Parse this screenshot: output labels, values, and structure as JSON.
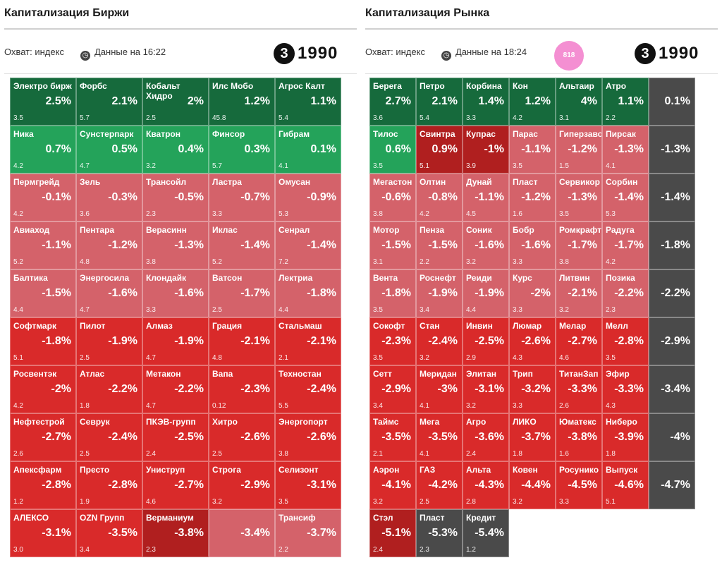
{
  "colors": {
    "dark_green": "#166a3c",
    "mid_green": "#24a35a",
    "light_red": "#d4626a",
    "red": "#d92a2a",
    "dark_red": "#b01f1f",
    "dark_gray": "#4a4a4a",
    "pink_badge": "#f48fd2"
  },
  "left_panel": {
    "title": "Капитализация Биржи",
    "subtitle_line1": "Охват: индекс",
    "subtitle_line2": "Данные на 16:22",
    "logo_text": "1990",
    "tiles": [
      {
        "name": "Электро бирж",
        "change": "2.5%",
        "price": "3.5",
        "color": "dark_green",
        "row": 0,
        "col": 0
      },
      {
        "name": "Форбс",
        "change": "2.1%",
        "price": "5.7",
        "color": "dark_green",
        "row": 0,
        "col": 1
      },
      {
        "name": "Кобальт Хидро",
        "change": "2%",
        "price": "2.5",
        "color": "dark_green",
        "row": 0,
        "col": 2
      },
      {
        "name": "Илс Мобо",
        "change": "1.2%",
        "price": "45.8",
        "color": "dark_green",
        "row": 0,
        "col": 3
      },
      {
        "name": "Агрос Калт",
        "change": "1.1%",
        "price": "5.4",
        "color": "dark_green",
        "row": 0,
        "col": 4
      },
      {
        "name": "Ника",
        "change": "0.7%",
        "price": "4.2",
        "color": "mid_green",
        "row": 1,
        "col": 0
      },
      {
        "name": "Сунстерпарк",
        "change": "0.5%",
        "price": "4.7",
        "color": "mid_green",
        "row": 1,
        "col": 1
      },
      {
        "name": "Кватрон",
        "change": "0.4%",
        "price": "3.2",
        "color": "mid_green",
        "row": 1,
        "col": 2
      },
      {
        "name": "Финсор",
        "change": "0.3%",
        "price": "5.7",
        "color": "mid_green",
        "row": 1,
        "col": 3
      },
      {
        "name": "Гибрам",
        "change": "0.1%",
        "price": "4.1",
        "color": "mid_green",
        "row": 1,
        "col": 4
      },
      {
        "name": "Пермгрейд",
        "change": "-0.1%",
        "price": "4.2",
        "color": "light_red",
        "row": 2,
        "col": 0
      },
      {
        "name": "Зель",
        "change": "-0.3%",
        "price": "3.6",
        "color": "light_red",
        "row": 2,
        "col": 1
      },
      {
        "name": "Трансойл",
        "change": "-0.5%",
        "price": "2.3",
        "color": "light_red",
        "row": 2,
        "col": 2
      },
      {
        "name": "Ластра",
        "change": "-0.7%",
        "price": "3.3",
        "color": "light_red",
        "row": 2,
        "col": 3
      },
      {
        "name": "Омусан",
        "change": "-0.9%",
        "price": "5.3",
        "color": "light_red",
        "row": 2,
        "col": 4
      },
      {
        "name": "Авиаход",
        "change": "-1.1%",
        "price": "5.2",
        "color": "light_red",
        "row": 3,
        "col": 0
      },
      {
        "name": "Пентара",
        "change": "-1.2%",
        "price": "4.8",
        "color": "light_red",
        "row": 3,
        "col": 1
      },
      {
        "name": "Верасинн",
        "change": "-1.3%",
        "price": "3.8",
        "color": "light_red",
        "row": 3,
        "col": 2
      },
      {
        "name": "Иклас",
        "change": "-1.4%",
        "price": "5.2",
        "color": "light_red",
        "row": 3,
        "col": 3
      },
      {
        "name": "Сенрал",
        "change": "-1.4%",
        "price": "7.2",
        "color": "light_red",
        "row": 3,
        "col": 4
      },
      {
        "name": "Балтика",
        "change": "-1.5%",
        "price": "4.4",
        "color": "light_red",
        "row": 4,
        "col": 0
      },
      {
        "name": "Энергосила",
        "change": "-1.6%",
        "price": "4.7",
        "color": "light_red",
        "row": 4,
        "col": 1
      },
      {
        "name": "Клондайк",
        "change": "-1.6%",
        "price": "3.3",
        "color": "light_red",
        "row": 4,
        "col": 2
      },
      {
        "name": "Ватсон",
        "change": "-1.7%",
        "price": "2.5",
        "color": "light_red",
        "row": 4,
        "col": 3
      },
      {
        "name": "Лектриа",
        "change": "-1.8%",
        "price": "4.4",
        "color": "light_red",
        "row": 4,
        "col": 4
      },
      {
        "name": "Софтмарк",
        "change": "-1.8%",
        "price": "5.1",
        "color": "red",
        "row": 5,
        "col": 0
      },
      {
        "name": "Пилот",
        "change": "-1.9%",
        "price": "2.5",
        "color": "red",
        "row": 5,
        "col": 1
      },
      {
        "name": "Алмаз",
        "change": "-1.9%",
        "price": "4.7",
        "color": "red",
        "row": 5,
        "col": 2
      },
      {
        "name": "Грация",
        "change": "-2.1%",
        "price": "4.8",
        "color": "red",
        "row": 5,
        "col": 3
      },
      {
        "name": "Стальмаш",
        "change": "-2.1%",
        "price": "2.1",
        "color": "red",
        "row": 5,
        "col": 4
      },
      {
        "name": "Росвентэк",
        "change": "-2%",
        "price": "4.2",
        "color": "red",
        "row": 6,
        "col": 0
      },
      {
        "name": "Атлас",
        "change": "-2.2%",
        "price": "1.8",
        "color": "red",
        "row": 6,
        "col": 1
      },
      {
        "name": "Метакон",
        "change": "-2.2%",
        "price": "4.7",
        "color": "red",
        "row": 6,
        "col": 2
      },
      {
        "name": "Вапа",
        "change": "-2.3%",
        "price": "0.12",
        "color": "red",
        "row": 6,
        "col": 3
      },
      {
        "name": "Техностан",
        "change": "-2.4%",
        "price": "5.5",
        "color": "red",
        "row": 6,
        "col": 4
      },
      {
        "name": "Нефтестрой",
        "change": "-2.7%",
        "price": "2.6",
        "color": "red",
        "row": 7,
        "col": 0
      },
      {
        "name": "Севрук",
        "change": "-2.4%",
        "price": "2.5",
        "color": "red",
        "row": 7,
        "col": 1
      },
      {
        "name": "ПКЭВ-групп",
        "change": "-2.5%",
        "price": "2.4",
        "color": "red",
        "row": 7,
        "col": 2
      },
      {
        "name": "Хитро",
        "change": "-2.6%",
        "price": "2.5",
        "color": "red",
        "row": 7,
        "col": 3
      },
      {
        "name": "Энергопорт",
        "change": "-2.6%",
        "price": "3.8",
        "color": "red",
        "row": 7,
        "col": 4
      },
      {
        "name": "Апексфарм",
        "change": "-2.8%",
        "price": "1.2",
        "color": "red",
        "row": 8,
        "col": 0
      },
      {
        "name": "Престо",
        "change": "-2.8%",
        "price": "1.9",
        "color": "red",
        "row": 8,
        "col": 1
      },
      {
        "name": "Униструп",
        "change": "-2.7%",
        "price": "4.6",
        "color": "red",
        "row": 8,
        "col": 2
      },
      {
        "name": "Строга",
        "change": "-2.9%",
        "price": "3.2",
        "color": "red",
        "row": 8,
        "col": 3
      },
      {
        "name": "Селизонт",
        "change": "-3.1%",
        "price": "3.5",
        "color": "red",
        "row": 8,
        "col": 4
      },
      {
        "name": "АЛЕКСО",
        "change": "-3.1%",
        "price": "3.0",
        "color": "red",
        "row": 9,
        "col": 0
      },
      {
        "name": "OZN Групп",
        "change": "-3.5%",
        "price": "3.4",
        "color": "red",
        "row": 9,
        "col": 1
      },
      {
        "name": "Верманиум",
        "change": "-3.8%",
        "price": "2.3",
        "color": "dark_red",
        "row": 9,
        "col": 2
      },
      {
        "name": "",
        "change": "-3.4%",
        "price": "",
        "color": "light_red",
        "row": 9,
        "col": 3
      },
      {
        "name": "Трансиф",
        "change": "-3.7%",
        "price": "2.2",
        "color": "light_red",
        "row": 9,
        "col": 4
      }
    ]
  },
  "right_panel": {
    "title": "Капитализация Рынка",
    "subtitle_line1": "Охват: индекс",
    "subtitle_line2": "Данные на 18:24",
    "badge_text": "818",
    "logo_text": "1990",
    "tiles": [
      {
        "name": "Берега",
        "change": "2.7%",
        "price": "3.6",
        "color": "dark_green",
        "row": 0,
        "col": 0
      },
      {
        "name": "Петро",
        "change": "2.1%",
        "price": "5.4",
        "color": "dark_green",
        "row": 0,
        "col": 1
      },
      {
        "name": "Корбина",
        "change": "1.4%",
        "price": "3.3",
        "color": "dark_green",
        "row": 0,
        "col": 2
      },
      {
        "name": "Кон",
        "change": "1.2%",
        "price": "4.2",
        "color": "dark_green",
        "row": 0,
        "col": 3
      },
      {
        "name": "Альтаир",
        "change": "4%",
        "price": "3.1",
        "color": "dark_green",
        "row": 0,
        "col": 4
      },
      {
        "name": "Атро",
        "change": "1.1%",
        "price": "2.2",
        "color": "dark_green",
        "row": 0,
        "col": 5
      },
      {
        "name": "",
        "change": "0.1%",
        "price": "",
        "color": "dark_gray",
        "row": 0,
        "col": 6
      },
      {
        "name": "Тилос",
        "change": "0.6%",
        "price": "3.5",
        "color": "mid_green",
        "row": 1,
        "col": 0
      },
      {
        "name": "Свинтра",
        "change": "0.9%",
        "price": "5.1",
        "color": "dark_red",
        "row": 1,
        "col": 1
      },
      {
        "name": "Купрас",
        "change": "-1%",
        "price": "3.9",
        "color": "dark_red",
        "row": 1,
        "col": 2
      },
      {
        "name": "Парас",
        "change": "-1.1%",
        "price": "3.5",
        "color": "light_red",
        "row": 1,
        "col": 3
      },
      {
        "name": "Гиперзавод",
        "change": "-1.2%",
        "price": "1.5",
        "color": "light_red",
        "row": 1,
        "col": 4
      },
      {
        "name": "Пирсак",
        "change": "-1.3%",
        "price": "4.1",
        "color": "light_red",
        "row": 1,
        "col": 5
      },
      {
        "name": "",
        "change": "-1.3%",
        "price": "",
        "color": "dark_gray",
        "row": 1,
        "col": 6
      },
      {
        "name": "Мегастон",
        "change": "-0.6%",
        "price": "3.8",
        "color": "light_red",
        "row": 2,
        "col": 0
      },
      {
        "name": "Олтин",
        "change": "-0.8%",
        "price": "4.2",
        "color": "light_red",
        "row": 2,
        "col": 1
      },
      {
        "name": "Дунай",
        "change": "-1.1%",
        "price": "4.5",
        "color": "light_red",
        "row": 2,
        "col": 2
      },
      {
        "name": "Пласт",
        "change": "-1.2%",
        "price": "1.6",
        "color": "light_red",
        "row": 2,
        "col": 3
      },
      {
        "name": "Сервикор",
        "change": "-1.3%",
        "price": "3.5",
        "color": "light_red",
        "row": 2,
        "col": 4
      },
      {
        "name": "Сорбин",
        "change": "-1.4%",
        "price": "5.3",
        "color": "light_red",
        "row": 2,
        "col": 5
      },
      {
        "name": "",
        "change": "-1.4%",
        "price": "",
        "color": "dark_gray",
        "row": 2,
        "col": 6
      },
      {
        "name": "Мотор",
        "change": "-1.5%",
        "price": "3.1",
        "color": "light_red",
        "row": 3,
        "col": 0
      },
      {
        "name": "Пенза",
        "change": "-1.5%",
        "price": "2.2",
        "color": "light_red",
        "row": 3,
        "col": 1
      },
      {
        "name": "Соник",
        "change": "-1.6%",
        "price": "3.2",
        "color": "light_red",
        "row": 3,
        "col": 2
      },
      {
        "name": "Бобр",
        "change": "-1.6%",
        "price": "3.3",
        "color": "light_red",
        "row": 3,
        "col": 3
      },
      {
        "name": "Ромкрафт",
        "change": "-1.7%",
        "price": "3.8",
        "color": "light_red",
        "row": 3,
        "col": 4
      },
      {
        "name": "Радуга",
        "change": "-1.7%",
        "price": "4.2",
        "color": "light_red",
        "row": 3,
        "col": 5
      },
      {
        "name": "",
        "change": "-1.8%",
        "price": "",
        "color": "dark_gray",
        "row": 3,
        "col": 6
      },
      {
        "name": "Вента",
        "change": "-1.8%",
        "price": "3.5",
        "color": "light_red",
        "row": 4,
        "col": 0
      },
      {
        "name": "Роснефт",
        "change": "-1.9%",
        "price": "3.4",
        "color": "light_red",
        "row": 4,
        "col": 1
      },
      {
        "name": "Реиди",
        "change": "-1.9%",
        "price": "4.4",
        "color": "light_red",
        "row": 4,
        "col": 2
      },
      {
        "name": "Курс",
        "change": "-2%",
        "price": "3.3",
        "color": "light_red",
        "row": 4,
        "col": 3
      },
      {
        "name": "Литвин",
        "change": "-2.1%",
        "price": "3.2",
        "color": "light_red",
        "row": 4,
        "col": 4
      },
      {
        "name": "Позика",
        "change": "-2.2%",
        "price": "2.3",
        "color": "light_red",
        "row": 4,
        "col": 5
      },
      {
        "name": "",
        "change": "-2.2%",
        "price": "",
        "color": "dark_gray",
        "row": 4,
        "col": 6
      },
      {
        "name": "Сокофт",
        "change": "-2.3%",
        "price": "3.5",
        "color": "red",
        "row": 5,
        "col": 0
      },
      {
        "name": "Стан",
        "change": "-2.4%",
        "price": "3.2",
        "color": "red",
        "row": 5,
        "col": 1
      },
      {
        "name": "Инвин",
        "change": "-2.5%",
        "price": "2.9",
        "color": "red",
        "row": 5,
        "col": 2
      },
      {
        "name": "Люмар",
        "change": "-2.6%",
        "price": "4.3",
        "color": "red",
        "row": 5,
        "col": 3
      },
      {
        "name": "Мелар",
        "change": "-2.7%",
        "price": "4.6",
        "color": "red",
        "row": 5,
        "col": 4
      },
      {
        "name": "Мелл",
        "change": "-2.8%",
        "price": "3.5",
        "color": "red",
        "row": 5,
        "col": 5
      },
      {
        "name": "",
        "change": "-2.9%",
        "price": "",
        "color": "dark_gray",
        "row": 5,
        "col": 6
      },
      {
        "name": "Сетт",
        "change": "-2.9%",
        "price": "3.4",
        "color": "red",
        "row": 6,
        "col": 0
      },
      {
        "name": "Меридан",
        "change": "-3%",
        "price": "4.1",
        "color": "red",
        "row": 6,
        "col": 1
      },
      {
        "name": "Элитан",
        "change": "-3.1%",
        "price": "3.2",
        "color": "red",
        "row": 6,
        "col": 2
      },
      {
        "name": "Трип",
        "change": "-3.2%",
        "price": "3.3",
        "color": "red",
        "row": 6,
        "col": 3
      },
      {
        "name": "ТитанЗап",
        "change": "-3.3%",
        "price": "2.6",
        "color": "red",
        "row": 6,
        "col": 4
      },
      {
        "name": "Эфир",
        "change": "-3.3%",
        "price": "4.3",
        "color": "red",
        "row": 6,
        "col": 5
      },
      {
        "name": "",
        "change": "-3.4%",
        "price": "",
        "color": "dark_gray",
        "row": 6,
        "col": 6
      },
      {
        "name": "Таймс",
        "change": "-3.5%",
        "price": "2.1",
        "color": "red",
        "row": 7,
        "col": 0
      },
      {
        "name": "Мега",
        "change": "-3.5%",
        "price": "4.1",
        "color": "red",
        "row": 7,
        "col": 1
      },
      {
        "name": "Агро",
        "change": "-3.6%",
        "price": "2.4",
        "color": "red",
        "row": 7,
        "col": 2
      },
      {
        "name": "ЛИКО",
        "change": "-3.7%",
        "price": "1.8",
        "color": "red",
        "row": 7,
        "col": 3
      },
      {
        "name": "Юматекс",
        "change": "-3.8%",
        "price": "1.6",
        "color": "red",
        "row": 7,
        "col": 4
      },
      {
        "name": "Ниберо",
        "change": "-3.9%",
        "price": "1.8",
        "color": "red",
        "row": 7,
        "col": 5
      },
      {
        "name": "",
        "change": "-4%",
        "price": "",
        "color": "dark_gray",
        "row": 7,
        "col": 6
      },
      {
        "name": "Аэрон",
        "change": "-4.1%",
        "price": "3.2",
        "color": "red",
        "row": 8,
        "col": 0
      },
      {
        "name": "ГАЗ",
        "change": "-4.2%",
        "price": "2.5",
        "color": "red",
        "row": 8,
        "col": 1
      },
      {
        "name": "Альта",
        "change": "-4.3%",
        "price": "2.8",
        "color": "red",
        "row": 8,
        "col": 2
      },
      {
        "name": "Ковен",
        "change": "-4.4%",
        "price": "3.2",
        "color": "red",
        "row": 8,
        "col": 3
      },
      {
        "name": "Росунико",
        "change": "-4.5%",
        "price": "3.3",
        "color": "red",
        "row": 8,
        "col": 4
      },
      {
        "name": "Выпуск",
        "change": "-4.6%",
        "price": "5.1",
        "color": "red",
        "row": 8,
        "col": 5
      },
      {
        "name": "",
        "change": "-4.7%",
        "price": "",
        "color": "dark_gray",
        "row": 8,
        "col": 6
      },
      {
        "name": "Стэл",
        "change": "-5.1%",
        "price": "2.4",
        "color": "dark_red",
        "row": 9,
        "col": 0
      },
      {
        "name": "Пласт",
        "change": "-5.3%",
        "price": "2.3",
        "color": "dark_gray",
        "row": 9,
        "col": 1
      },
      {
        "name": "Кредит",
        "change": "-5.4%",
        "price": "1.2",
        "color": "dark_gray",
        "row": 9,
        "col": 2
      }
    ]
  }
}
